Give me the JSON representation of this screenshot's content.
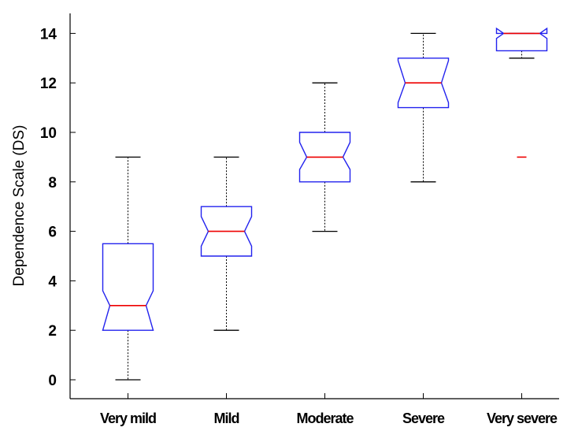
{
  "chart_data": {
    "type": "boxplot",
    "title": "",
    "xlabel": "",
    "ylabel": "Dependence Scale (DS)",
    "ylim": [
      -0.7,
      14.9
    ],
    "yticks": [
      0,
      2,
      4,
      6,
      8,
      10,
      12,
      14
    ],
    "categories": [
      "Very mild",
      "Mild",
      "Moderate",
      "Severe",
      "Very severe"
    ],
    "notched": true,
    "grid": false,
    "boxes": [
      {
        "category": "Very mild",
        "whisker_low": 0,
        "q1": 2,
        "median": 3,
        "q3": 5.5,
        "whisker_high": 9,
        "notch_low": 2.0,
        "notch_high": 3.6,
        "outliers": []
      },
      {
        "category": "Mild",
        "whisker_low": 2,
        "q1": 5,
        "median": 6,
        "q3": 7,
        "whisker_high": 9,
        "notch_low": 5.4,
        "notch_high": 6.6,
        "outliers": []
      },
      {
        "category": "Moderate",
        "whisker_low": 6,
        "q1": 8,
        "median": 9,
        "q3": 10,
        "whisker_high": 12,
        "notch_low": 8.5,
        "notch_high": 9.6,
        "outliers": []
      },
      {
        "category": "Severe",
        "whisker_low": 8,
        "q1": 11,
        "median": 12,
        "q3": 13,
        "whisker_high": 14,
        "notch_low": 11.2,
        "notch_high": 12.9,
        "outliers": []
      },
      {
        "category": "Very severe",
        "whisker_low": 13,
        "q1": 13.3,
        "median": 14,
        "q3": 14,
        "whisker_high": 14,
        "notch_low": 13.8,
        "notch_high": 14.2,
        "outliers": [
          9
        ]
      }
    ],
    "colors": {
      "box": "#2222ee",
      "median": "#ee0000",
      "whisker": "#000000",
      "outlier": "#ee0000"
    }
  }
}
